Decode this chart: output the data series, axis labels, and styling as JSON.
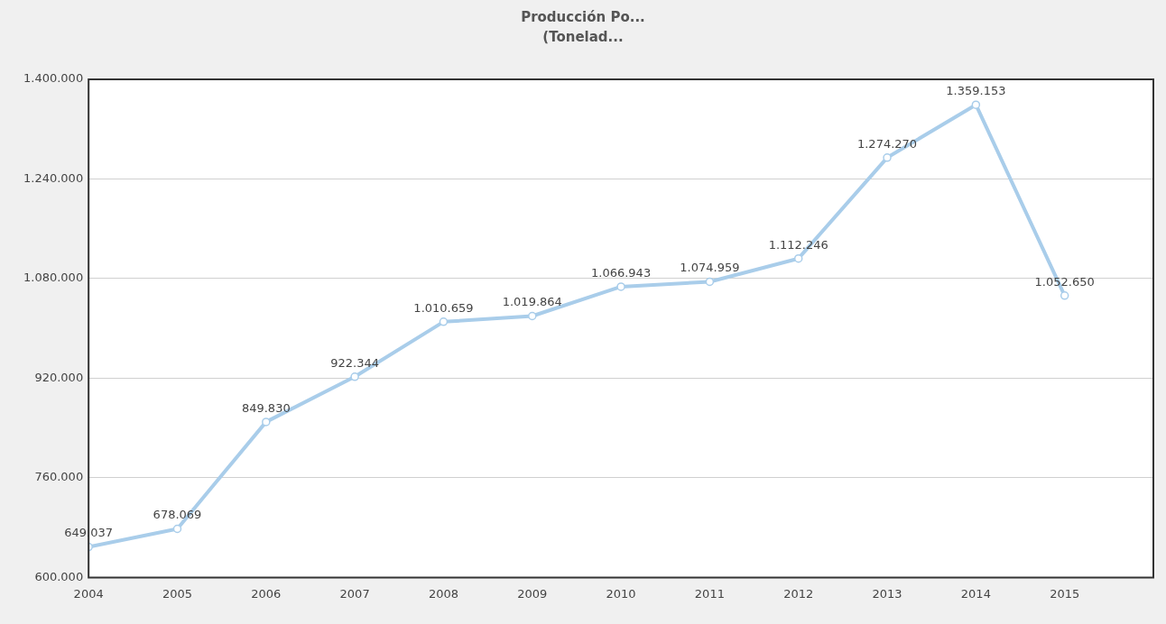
{
  "chart_data": {
    "type": "line",
    "title": "Producción Po...",
    "subtitle": "(Tonelad...",
    "x": [
      2004,
      2005,
      2006,
      2007,
      2008,
      2009,
      2010,
      2011,
      2012,
      2013,
      2014,
      2015
    ],
    "series": [
      {
        "color": "#a9cdea",
        "values": [
          649037,
          678069,
          849830,
          922344,
          1010659,
          1019864,
          1066943,
          1074959,
          1112246,
          1274270,
          1359153,
          1052650
        ],
        "value_labels": [
          "649.037",
          "678.069",
          "849.830",
          "922.344",
          "1.010.659",
          "1.019.864",
          "1.066.943",
          "1.074.959",
          "1.112.246",
          "1.274.270",
          "1.359.153",
          "1.052.650"
        ]
      }
    ],
    "xlim": [
      2004,
      2016
    ],
    "xticks": [
      2004,
      2005,
      2006,
      2007,
      2008,
      2009,
      2010,
      2011,
      2012,
      2013,
      2014,
      2015
    ],
    "ylim": [
      600000,
      1400000
    ],
    "yticks": [
      {
        "value": 600000,
        "label": "600.000"
      },
      {
        "value": 760000,
        "label": "760.000"
      },
      {
        "value": 920000,
        "label": "920.000"
      },
      {
        "value": 1080000,
        "label": "1.080.000"
      },
      {
        "value": 1240000,
        "label": "1.240.000"
      },
      {
        "value": 1400000,
        "label": "1.400.000"
      }
    ],
    "grid": "y",
    "legend": false,
    "marker": "circle",
    "line_style": "solid"
  }
}
